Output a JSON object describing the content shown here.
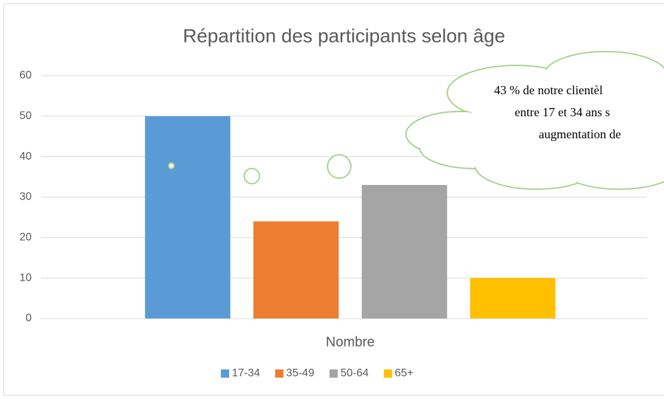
{
  "chart_data": {
    "type": "bar",
    "title": "Répartition des participants selon  âge",
    "categories": [
      "Nombre"
    ],
    "series": [
      {
        "name": "17-34",
        "color": "#5b9bd5",
        "values": [
          50
        ]
      },
      {
        "name": "35-49",
        "color": "#ed7d31",
        "values": [
          24
        ]
      },
      {
        "name": "50-64",
        "color": "#a5a5a5",
        "values": [
          33
        ]
      },
      {
        "name": "65+",
        "color": "#ffc000",
        "values": [
          10
        ]
      }
    ],
    "ylim": [
      0,
      60
    ],
    "yticks": [
      0,
      10,
      20,
      30,
      40,
      50,
      60
    ],
    "grid": true,
    "legend": "bottom",
    "annotation": [
      "43 % de notre clientèl",
      "entre 17 et 34 ans s",
      "augmentation de"
    ]
  }
}
